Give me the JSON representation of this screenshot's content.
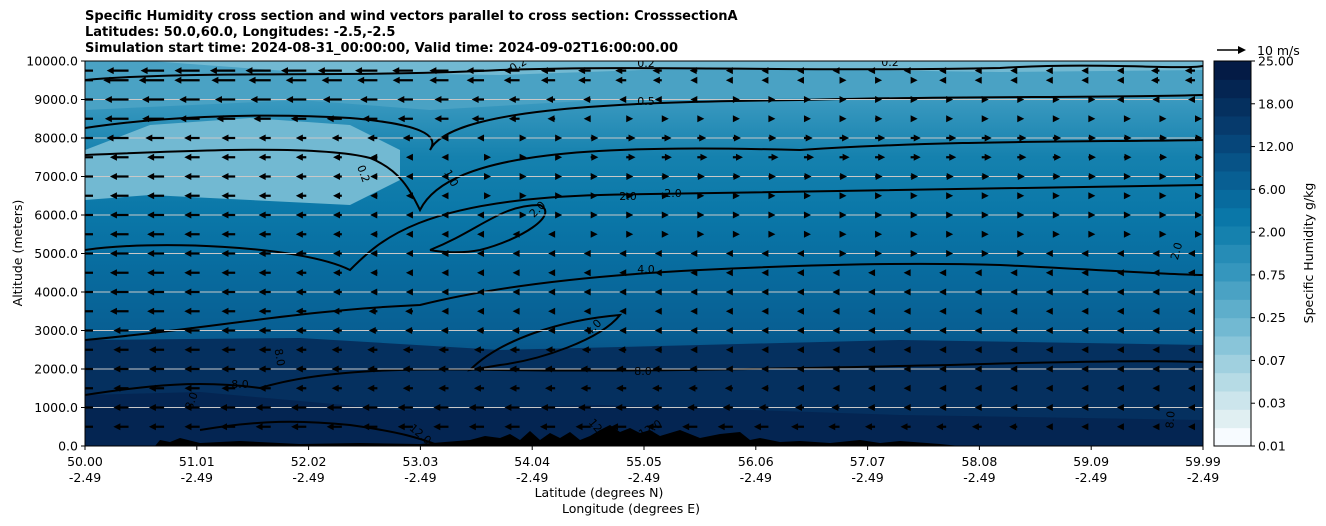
{
  "chart_data": {
    "type": "heatmap",
    "title_lines": [
      "Specific Humidity cross section and wind vectors parallel to cross section: CrosssectionA",
      "Latitudes: 50.0,60.0, Longitudes: -2.5,-2.5",
      "Simulation start time: 2024-08-31_00:00:00, Valid time: 2024-09-02T16:00:00.00"
    ],
    "ylabel": "Altitude (meters)",
    "xlabel_lines": [
      "Latitude (degrees N)",
      "Longitude (degrees E)"
    ],
    "y_ticks": [
      "0.0",
      "1000.0",
      "2000.0",
      "3000.0",
      "4000.0",
      "5000.0",
      "6000.0",
      "7000.0",
      "8000.0",
      "9000.0",
      "10000.0"
    ],
    "ylim": [
      0,
      10000
    ],
    "x_ticks": [
      {
        "lat": "50.00",
        "lon": "-2.49"
      },
      {
        "lat": "51.01",
        "lon": "-2.49"
      },
      {
        "lat": "52.02",
        "lon": "-2.49"
      },
      {
        "lat": "53.03",
        "lon": "-2.49"
      },
      {
        "lat": "54.04",
        "lon": "-2.49"
      },
      {
        "lat": "55.05",
        "lon": "-2.49"
      },
      {
        "lat": "56.06",
        "lon": "-2.49"
      },
      {
        "lat": "57.07",
        "lon": "-2.49"
      },
      {
        "lat": "58.08",
        "lon": "-2.49"
      },
      {
        "lat": "59.09",
        "lon": "-2.49"
      },
      {
        "lat": "59.99",
        "lon": "-2.49"
      }
    ],
    "xlim": [
      50.0,
      59.99
    ],
    "colorbar": {
      "label": "Specific Humidity g/kg",
      "tick_labels": [
        "0.01",
        "0.03",
        "0.07",
        "0.25",
        "0.75",
        "2.00",
        "6.00",
        "12.00",
        "18.00",
        "25.00"
      ],
      "colors": [
        "#f7fbff",
        "#e0eff2",
        "#cce5ec",
        "#b6dbe5",
        "#a0d0df",
        "#89c5d9",
        "#72b9d2",
        "#5eaecb",
        "#4aa2c4",
        "#3596bd",
        "#268cb6",
        "#1581ae",
        "#0a77a8",
        "#086b9e",
        "#085f93",
        "#075387",
        "#06467a",
        "#063a6c",
        "#05305f",
        "#042552",
        "#041b45"
      ]
    },
    "quiver_key": {
      "label": "10 m/s",
      "value": 10
    },
    "contour_levels": [
      0.2,
      0.5,
      1.0,
      2.0,
      4.0,
      8.0,
      12.0
    ],
    "contour_labels": [
      "0.2",
      "0.5",
      "1.0",
      "2.0",
      "4.0",
      "8.0",
      "12.0"
    ],
    "wind_rows": [
      {
        "alt": 9750,
        "u": [
          -4,
          -5,
          -5,
          -4,
          -3,
          -2,
          -1,
          -0.5,
          -0.5,
          -1,
          -2
        ]
      },
      {
        "alt": 9500,
        "u": [
          -5,
          -5,
          -4,
          -4,
          -3,
          -2,
          -0.5,
          0.5,
          -0.5,
          -1,
          -2
        ]
      },
      {
        "alt": 9000,
        "u": [
          -5,
          -4,
          -4,
          -3,
          -2,
          -1,
          1,
          1,
          0.5,
          0.5,
          -1
        ]
      },
      {
        "alt": 8500,
        "u": [
          -5,
          -4,
          -3,
          -3,
          -2,
          0.5,
          1,
          1.5,
          1,
          1,
          1
        ]
      },
      {
        "alt": 8000,
        "u": [
          -5,
          -3,
          -2,
          -2,
          1,
          2,
          1.5,
          2,
          2,
          1.5,
          1.5
        ]
      },
      {
        "alt": 7500,
        "u": [
          -4,
          -3,
          -2,
          -1,
          1,
          2,
          2,
          2,
          2,
          1.5,
          1.5
        ]
      },
      {
        "alt": 7000,
        "u": [
          -4,
          -3,
          -2,
          -1,
          1,
          1.5,
          1.5,
          1.5,
          1.5,
          1.5,
          1
        ]
      },
      {
        "alt": 6500,
        "u": [
          -4,
          -3,
          -2,
          -1,
          1,
          1.5,
          1,
          1,
          1,
          1,
          1
        ]
      },
      {
        "alt": 6000,
        "u": [
          -4,
          -3,
          -2,
          -1,
          0.5,
          1,
          1,
          0.5,
          0.5,
          0.5,
          0.5
        ]
      },
      {
        "alt": 5500,
        "u": [
          -4,
          -3,
          -2,
          -1,
          -0.5,
          0.5,
          0.5,
          0.5,
          0.5,
          0.5,
          0.5
        ]
      },
      {
        "alt": 5000,
        "u": [
          -4,
          -3,
          -2,
          -1,
          -0.5,
          -0.5,
          -0.5,
          0.5,
          0.5,
          -0.5,
          -0.5
        ]
      },
      {
        "alt": 4500,
        "u": [
          -4,
          -3,
          -2,
          -1,
          -1,
          -0.5,
          -0.5,
          -0.5,
          -0.5,
          -0.5,
          -1
        ]
      },
      {
        "alt": 4000,
        "u": [
          -4,
          -3,
          -2,
          -1,
          -1,
          -1,
          -0.5,
          -0.5,
          -1,
          -1,
          -1
        ]
      },
      {
        "alt": 3500,
        "u": [
          -4,
          -3,
          -2,
          -1.5,
          -1,
          -1,
          -1,
          -1,
          -1,
          -1,
          -1
        ]
      },
      {
        "alt": 3000,
        "u": [
          -3,
          -3,
          -2,
          -1.5,
          -1.5,
          -1,
          -1,
          -1,
          -1,
          -1,
          -1
        ]
      },
      {
        "alt": 2500,
        "u": [
          -3,
          -3,
          -2,
          -2,
          -2,
          -1.5,
          -1,
          -1,
          -1,
          -1,
          -1
        ]
      },
      {
        "alt": 2000,
        "u": [
          -3,
          -3,
          -2,
          -2,
          -2,
          -2,
          -1,
          -1,
          -1,
          -1,
          -1
        ]
      },
      {
        "alt": 1500,
        "u": [
          -3,
          -3,
          -2,
          -2,
          -2,
          -2,
          -1.5,
          -1,
          -1,
          -1,
          -1
        ]
      },
      {
        "alt": 1000,
        "u": [
          -3,
          -3,
          -3,
          -3,
          -3,
          -2,
          -2,
          -1.5,
          -1,
          -1,
          -1
        ]
      },
      {
        "alt": 500,
        "u": [
          -3,
          -3,
          -3,
          -3,
          -3,
          -3,
          -3,
          -2,
          -2,
          -1,
          -1
        ]
      }
    ],
    "grid": "horizontal"
  }
}
